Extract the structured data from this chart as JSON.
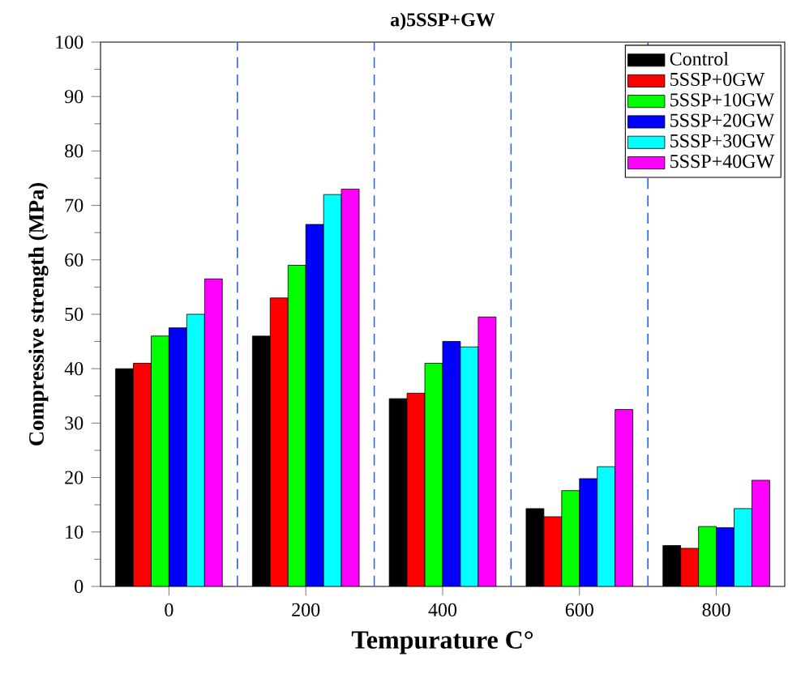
{
  "chart_data": {
    "type": "bar",
    "title": "a)5SSP+GW",
    "xlabel": "Tempurature C°",
    "ylabel": "Compressive strength (MPa)",
    "x": [
      0,
      200,
      400,
      600,
      800
    ],
    "series": [
      {
        "name": "Control",
        "color": "#000000",
        "values": [
          40,
          46,
          34.5,
          14.3,
          7.5
        ]
      },
      {
        "name": "5SSP+0GW",
        "color": "#ff0000",
        "values": [
          41,
          53,
          35.5,
          12.8,
          7
        ]
      },
      {
        "name": "5SSP+10GW",
        "color": "#00ff00",
        "values": [
          46,
          59,
          41,
          17.6,
          11
        ]
      },
      {
        "name": "5SSP+20GW",
        "color": "#0000ff",
        "values": [
          47.5,
          66.5,
          45,
          19.8,
          10.8
        ]
      },
      {
        "name": "5SSP+30GW",
        "color": "#00ffff",
        "values": [
          50,
          72,
          44,
          22,
          14.3
        ]
      },
      {
        "name": "5SSP+40GW",
        "color": "#ff00ff",
        "values": [
          56.5,
          73,
          49.5,
          32.5,
          19.5
        ]
      }
    ],
    "xlim": [
      -100,
      900
    ],
    "xticks": [
      0,
      200,
      400,
      600,
      800
    ],
    "ylim": [
      0,
      100
    ],
    "yticks": [
      0,
      10,
      20,
      30,
      40,
      50,
      60,
      70,
      80,
      90,
      100
    ],
    "ref_lines": [
      {
        "axis": "x",
        "value": 100,
        "color": "#3060e0",
        "line_style": "dashed"
      },
      {
        "axis": "x",
        "value": 300,
        "color": "#3060e0",
        "line_style": "dashed"
      },
      {
        "axis": "x",
        "value": 500,
        "color": "#3060e0",
        "line_style": "dashed"
      },
      {
        "axis": "x",
        "value": 700,
        "color": "#3060e0",
        "line_style": "dashed"
      }
    ],
    "legend": "top right",
    "grid": false
  }
}
